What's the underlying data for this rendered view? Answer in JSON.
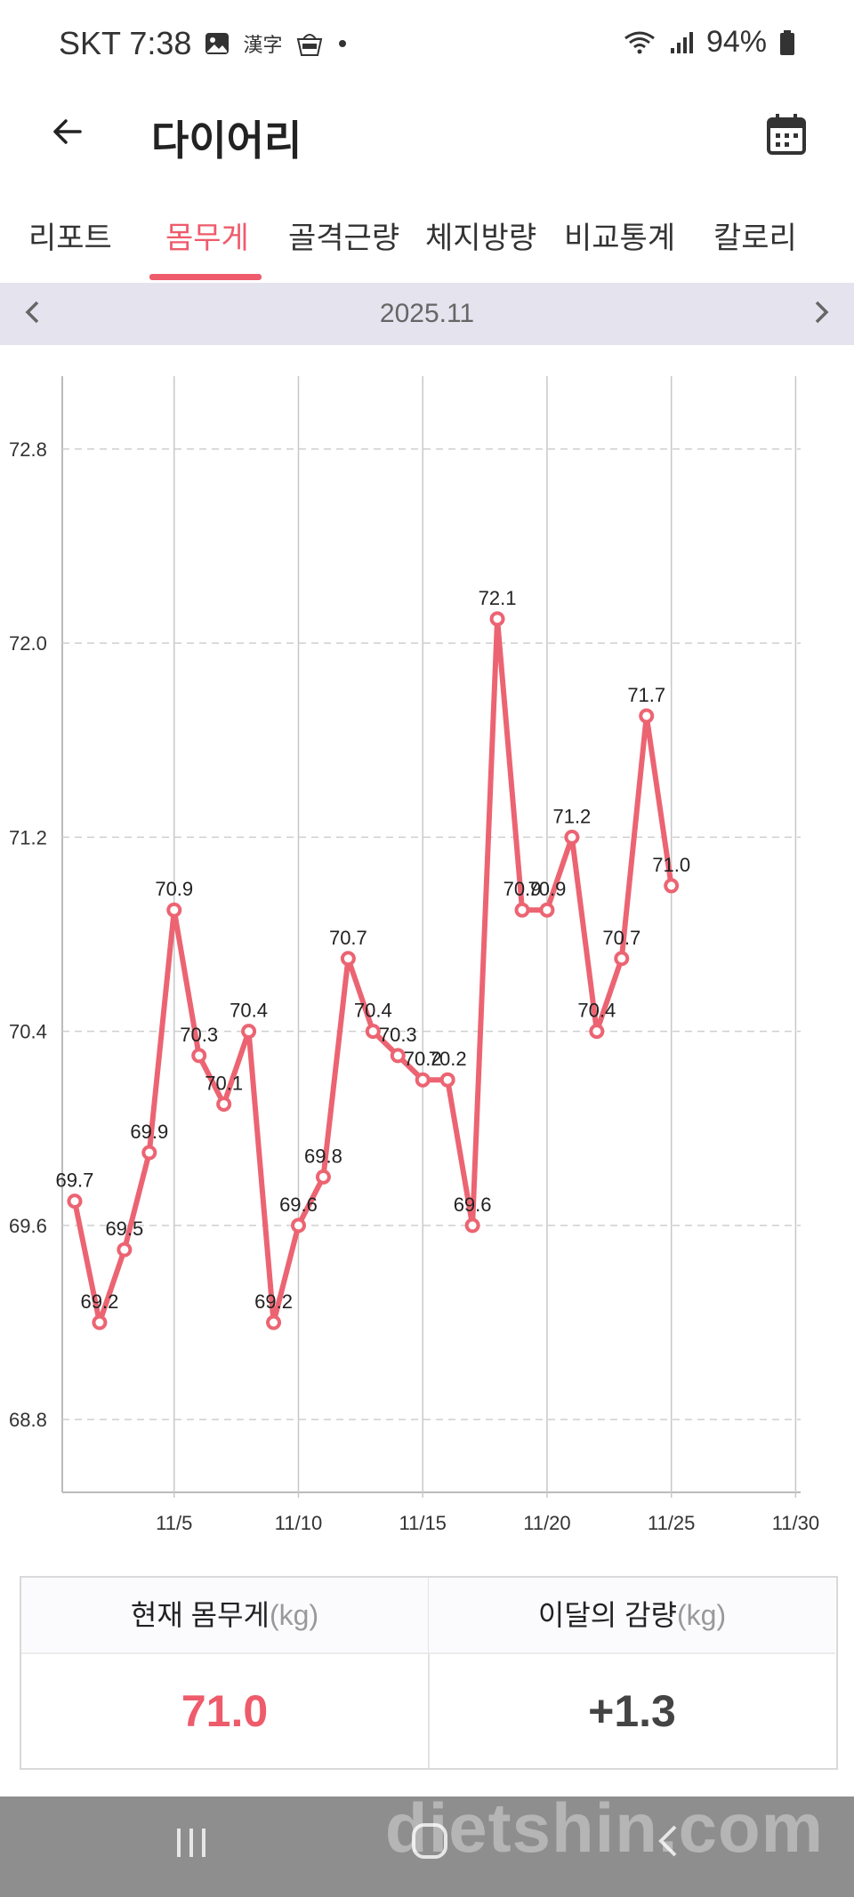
{
  "status": {
    "carrier_time": "SKT 7:38",
    "icons": [
      "image-icon",
      "hanja-icon",
      "translate-icon",
      "dot-icon"
    ],
    "battery": "94%",
    "right_icons": [
      "wifi-icon",
      "signal-icon",
      "battery-icon"
    ]
  },
  "app": {
    "title": "다이어리"
  },
  "tabs": [
    {
      "label": "리포트",
      "active": false
    },
    {
      "label": "몸무게",
      "active": true
    },
    {
      "label": "골격근량",
      "active": false
    },
    {
      "label": "체지방량",
      "active": false
    },
    {
      "label": "비교통계",
      "active": false
    },
    {
      "label": "칼로리",
      "active": false
    }
  ],
  "month": {
    "label": "2025.11"
  },
  "colors": {
    "accent": "#ee5b6b",
    "line": "#ec6472",
    "grid": "#cccccc",
    "nav": "#8e8e8e"
  },
  "chart_data": {
    "type": "line",
    "x_labels": [
      "11/5",
      "11/10",
      "11/15",
      "11/20",
      "11/25",
      "11/30"
    ],
    "y_labels": [
      "72.8",
      "72.0",
      "71.2",
      "70.4",
      "69.6",
      "68.8"
    ],
    "ylim": [
      68.5,
      73.1
    ],
    "xlim": [
      0.5,
      30.2
    ],
    "grid": true,
    "series": [
      {
        "values": [
          {
            "day": 1,
            "weight": 69.7
          },
          {
            "day": 2,
            "weight": 69.2
          },
          {
            "day": 3,
            "weight": 69.5
          },
          {
            "day": 4,
            "weight": 69.9
          },
          {
            "day": 5,
            "weight": 70.9
          },
          {
            "day": 6,
            "weight": 70.3
          },
          {
            "day": 7,
            "weight": 70.1
          },
          {
            "day": 8,
            "weight": 70.4
          },
          {
            "day": 9,
            "weight": 69.2
          },
          {
            "day": 10,
            "weight": 69.6
          },
          {
            "day": 11,
            "weight": 69.8
          },
          {
            "day": 12,
            "weight": 70.7
          },
          {
            "day": 13,
            "weight": 70.4
          },
          {
            "day": 14,
            "weight": 70.3
          },
          {
            "day": 15,
            "weight": 70.2
          },
          {
            "day": 16,
            "weight": 70.2
          },
          {
            "day": 17,
            "weight": 69.6
          },
          {
            "day": 18,
            "weight": 72.1
          },
          {
            "day": 19,
            "weight": 70.9
          },
          {
            "day": 20,
            "weight": 70.9
          },
          {
            "day": 21,
            "weight": 71.2
          },
          {
            "day": 22,
            "weight": 70.4
          },
          {
            "day": 23,
            "weight": 70.7
          },
          {
            "day": 24,
            "weight": 71.7
          },
          {
            "day": 25,
            "weight": 71.0
          }
        ]
      }
    ]
  },
  "stats": {
    "current": {
      "label": "현재 몸무게",
      "unit": "(kg)",
      "value": "71.0"
    },
    "change": {
      "label": "이달의 감량",
      "unit": "(kg)",
      "value": "+1.3"
    }
  },
  "watermark": "dietshin.com"
}
